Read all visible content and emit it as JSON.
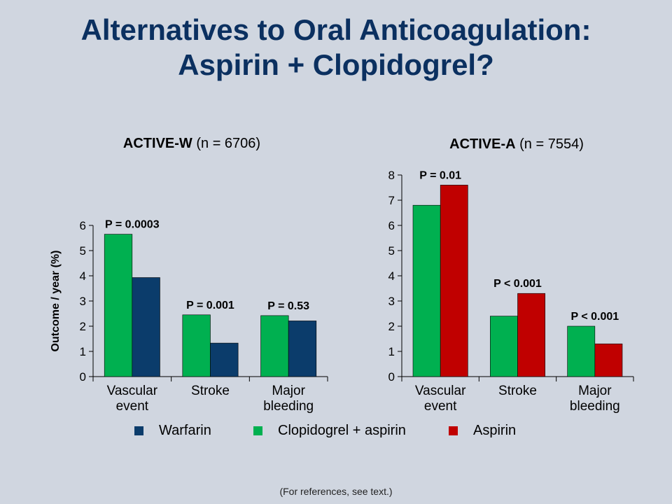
{
  "slide": {
    "title_line1": "Alternatives to Oral Anticoagulation:",
    "title_line2": "Aspirin + Clopidogrel?",
    "footnote": "(For references, see text.)"
  },
  "colors": {
    "Warfarin": "#0b3c6b",
    "Clopidogrel + aspirin": "#00b050",
    "Aspirin": "#c00000"
  },
  "legend": [
    {
      "label": "Warfarin",
      "color": "#0b3c6b"
    },
    {
      "label": "Clopidogrel + aspirin",
      "color": "#00b050"
    },
    {
      "label": "Aspirin",
      "color": "#c00000"
    }
  ],
  "chart_data": [
    {
      "type": "bar",
      "title_bold": "ACTIVE-W",
      "title_rest": " (n = 6706)",
      "ylabel": "Outcome / year (%)",
      "ylim": [
        0,
        6
      ],
      "yticks": [
        0,
        1,
        2,
        3,
        4,
        5,
        6
      ],
      "categories": [
        [
          "Vascular",
          "event"
        ],
        [
          "Stroke"
        ],
        [
          "Major",
          "bleeding"
        ]
      ],
      "series": [
        {
          "name": "Clopidogrel + aspirin",
          "values": [
            5.65,
            2.45,
            2.42
          ]
        },
        {
          "name": "Warfarin",
          "values": [
            3.93,
            1.33,
            2.21
          ]
        }
      ],
      "p_values": [
        "P = 0.0003",
        "P = 0.001",
        "P = 0.53"
      ]
    },
    {
      "type": "bar",
      "title_bold": "ACTIVE-A",
      "title_rest": " (n = 7554)",
      "ylabel": "",
      "ylim": [
        0,
        8
      ],
      "yticks": [
        0,
        1,
        2,
        3,
        4,
        5,
        6,
        7,
        8
      ],
      "categories": [
        [
          "Vascular",
          "event"
        ],
        [
          "Stroke"
        ],
        [
          "Major",
          "bleeding"
        ]
      ],
      "series": [
        {
          "name": "Clopidogrel + aspirin",
          "values": [
            6.8,
            2.4,
            2.0
          ]
        },
        {
          "name": "Aspirin",
          "values": [
            7.6,
            3.3,
            1.3
          ]
        }
      ],
      "p_values": [
        "P = 0.01",
        "P < 0.001",
        "P < 0.001"
      ]
    }
  ]
}
